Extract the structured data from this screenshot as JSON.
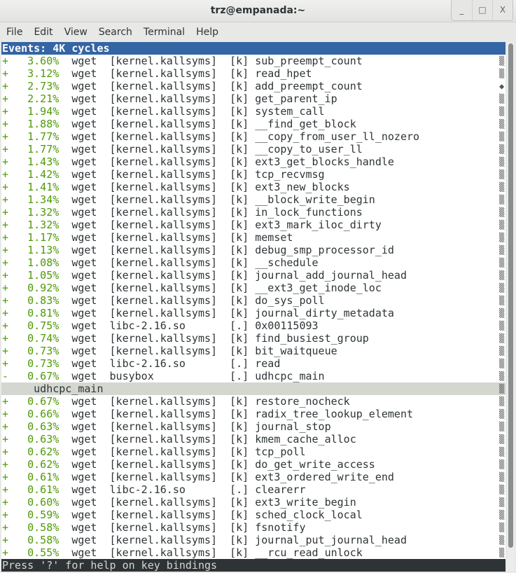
{
  "window": {
    "title": "trz@empanada:~",
    "buttons": [
      "_",
      "□",
      "X"
    ]
  },
  "menu": [
    "File",
    "Edit",
    "View",
    "Search",
    "Terminal",
    "Help"
  ],
  "header": "Events: 4K cycles",
  "rows": [
    [
      "+",
      "3.60%",
      "wget",
      "[kernel.kallsyms]",
      "[k]",
      "sub_preempt_count"
    ],
    [
      "+",
      "3.12%",
      "wget",
      "[kernel.kallsyms]",
      "[k]",
      "read_hpet"
    ],
    [
      "+",
      "2.73%",
      "wget",
      "[kernel.kallsyms]",
      "[k]",
      "add_preempt_count"
    ],
    [
      "+",
      "2.21%",
      "wget",
      "[kernel.kallsyms]",
      "[k]",
      "get_parent_ip"
    ],
    [
      "+",
      "1.94%",
      "wget",
      "[kernel.kallsyms]",
      "[k]",
      "system_call"
    ],
    [
      "+",
      "1.88%",
      "wget",
      "[kernel.kallsyms]",
      "[k]",
      "__find_get_block"
    ],
    [
      "+",
      "1.77%",
      "wget",
      "[kernel.kallsyms]",
      "[k]",
      "__copy_from_user_ll_nozero"
    ],
    [
      "+",
      "1.77%",
      "wget",
      "[kernel.kallsyms]",
      "[k]",
      "__copy_to_user_ll"
    ],
    [
      "+",
      "1.43%",
      "wget",
      "[kernel.kallsyms]",
      "[k]",
      "ext3_get_blocks_handle"
    ],
    [
      "+",
      "1.42%",
      "wget",
      "[kernel.kallsyms]",
      "[k]",
      "tcp_recvmsg"
    ],
    [
      "+",
      "1.41%",
      "wget",
      "[kernel.kallsyms]",
      "[k]",
      "ext3_new_blocks"
    ],
    [
      "+",
      "1.34%",
      "wget",
      "[kernel.kallsyms]",
      "[k]",
      "__block_write_begin"
    ],
    [
      "+",
      "1.32%",
      "wget",
      "[kernel.kallsyms]",
      "[k]",
      "in_lock_functions"
    ],
    [
      "+",
      "1.32%",
      "wget",
      "[kernel.kallsyms]",
      "[k]",
      "ext3_mark_iloc_dirty"
    ],
    [
      "+",
      "1.17%",
      "wget",
      "[kernel.kallsyms]",
      "[k]",
      "memset"
    ],
    [
      "+",
      "1.13%",
      "wget",
      "[kernel.kallsyms]",
      "[k]",
      "debug_smp_processor_id"
    ],
    [
      "+",
      "1.08%",
      "wget",
      "[kernel.kallsyms]",
      "[k]",
      "__schedule"
    ],
    [
      "+",
      "1.05%",
      "wget",
      "[kernel.kallsyms]",
      "[k]",
      "journal_add_journal_head"
    ],
    [
      "+",
      "0.92%",
      "wget",
      "[kernel.kallsyms]",
      "[k]",
      "__ext3_get_inode_loc"
    ],
    [
      "+",
      "0.83%",
      "wget",
      "[kernel.kallsyms]",
      "[k]",
      "do_sys_poll"
    ],
    [
      "+",
      "0.81%",
      "wget",
      "[kernel.kallsyms]",
      "[k]",
      "journal_dirty_metadata"
    ],
    [
      "+",
      "0.75%",
      "wget",
      "libc-2.16.so",
      "[.]",
      "0x00115093"
    ],
    [
      "+",
      "0.74%",
      "wget",
      "[kernel.kallsyms]",
      "[k]",
      "find_busiest_group"
    ],
    [
      "+",
      "0.73%",
      "wget",
      "[kernel.kallsyms]",
      "[k]",
      "bit_waitqueue"
    ],
    [
      "+",
      "0.73%",
      "wget",
      "libc-2.16.so",
      "[.]",
      "read"
    ],
    [
      "-",
      "0.67%",
      "wget",
      "busybox",
      "[.]",
      "udhcpc_main"
    ],
    [
      "+",
      "0.67%",
      "wget",
      "[kernel.kallsyms]",
      "[k]",
      "restore_nocheck"
    ],
    [
      "+",
      "0.66%",
      "wget",
      "[kernel.kallsyms]",
      "[k]",
      "radix_tree_lookup_element"
    ],
    [
      "+",
      "0.63%",
      "wget",
      "[kernel.kallsyms]",
      "[k]",
      "journal_stop"
    ],
    [
      "+",
      "0.63%",
      "wget",
      "[kernel.kallsyms]",
      "[k]",
      "kmem_cache_alloc"
    ],
    [
      "+",
      "0.62%",
      "wget",
      "[kernel.kallsyms]",
      "[k]",
      "tcp_poll"
    ],
    [
      "+",
      "0.62%",
      "wget",
      "[kernel.kallsyms]",
      "[k]",
      "do_get_write_access"
    ],
    [
      "+",
      "0.61%",
      "wget",
      "[kernel.kallsyms]",
      "[k]",
      "ext3_ordered_write_end"
    ],
    [
      "+",
      "0.61%",
      "wget",
      "libc-2.16.so",
      "[.]",
      "clearerr"
    ],
    [
      "+",
      "0.60%",
      "wget",
      "[kernel.kallsyms]",
      "[k]",
      "ext3_write_begin"
    ],
    [
      "+",
      "0.59%",
      "wget",
      "[kernel.kallsyms]",
      "[k]",
      "sched_clock_local"
    ],
    [
      "+",
      "0.58%",
      "wget",
      "[kernel.kallsyms]",
      "[k]",
      "fsnotify"
    ],
    [
      "+",
      "0.58%",
      "wget",
      "[kernel.kallsyms]",
      "[k]",
      "journal_put_journal_head"
    ],
    [
      "+",
      "0.55%",
      "wget",
      "[kernel.kallsyms]",
      "[k]",
      "__rcu_read_unlock"
    ]
  ],
  "expanded_child": "udhcpc_main",
  "status": "Press '?' for help on key bindings",
  "colors": {
    "header_bg": "#3465a4",
    "percent": "#4e9a06",
    "selected_bg": "#d3d7cf",
    "status_bg": "#2e3436"
  }
}
